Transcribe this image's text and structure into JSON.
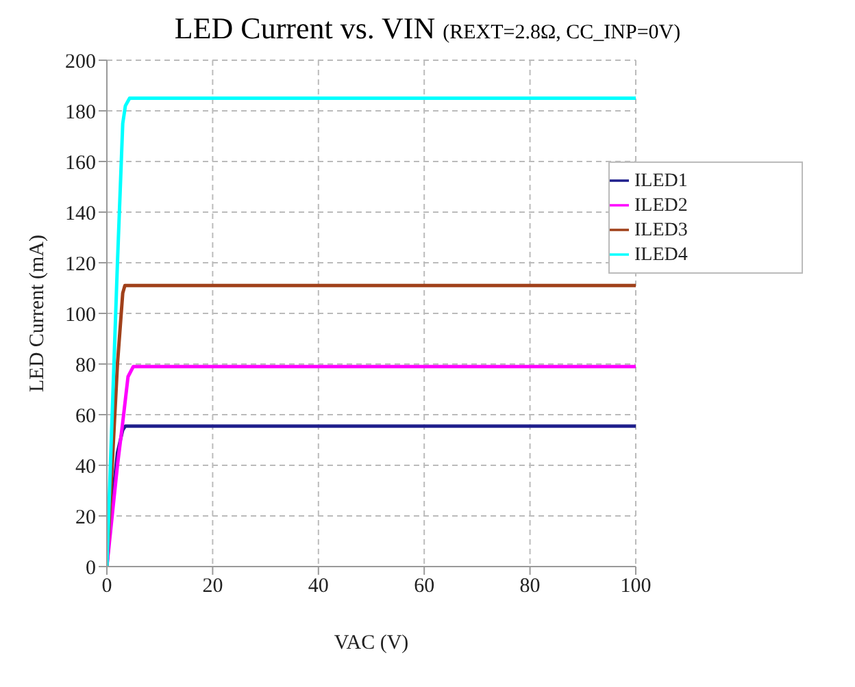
{
  "chart_data": {
    "type": "line",
    "title": "LED Current vs. VIN",
    "subtitle": "(REXT=2.8Ω, CC_INP=0V)",
    "xlabel": "VAC (V)",
    "ylabel": "LED Current (mA)",
    "xlim": [
      0,
      100
    ],
    "xticks": [
      0,
      20,
      40,
      60,
      80,
      100
    ],
    "ylim": [
      0,
      200
    ],
    "yticks": [
      0,
      20,
      40,
      60,
      80,
      100,
      120,
      140,
      160,
      180,
      200
    ],
    "grid": true,
    "legend": "top right",
    "marker": "none",
    "line_style": "solid",
    "series": [
      {
        "name": "ILED1",
        "color": "#1f1f8c",
        "x": [
          0,
          1,
          2,
          3,
          3.5,
          100
        ],
        "values": [
          0,
          25,
          45,
          54,
          55.5,
          55.5
        ]
      },
      {
        "name": "ILED2",
        "color": "#ff00ff",
        "x": [
          0,
          1,
          2,
          3,
          4,
          5,
          100
        ],
        "values": [
          0,
          20,
          40,
          57,
          75,
          79,
          79
        ]
      },
      {
        "name": "ILED3",
        "color": "#a0401a",
        "x": [
          0,
          1,
          2,
          3,
          3.4,
          100
        ],
        "values": [
          0,
          40,
          80,
          108,
          111,
          111
        ]
      },
      {
        "name": "ILED4",
        "color": "#00ffff",
        "x": [
          0,
          1,
          2,
          3,
          3.5,
          4.3,
          100
        ],
        "values": [
          0,
          60,
          120,
          175,
          182,
          185,
          185
        ]
      }
    ]
  }
}
